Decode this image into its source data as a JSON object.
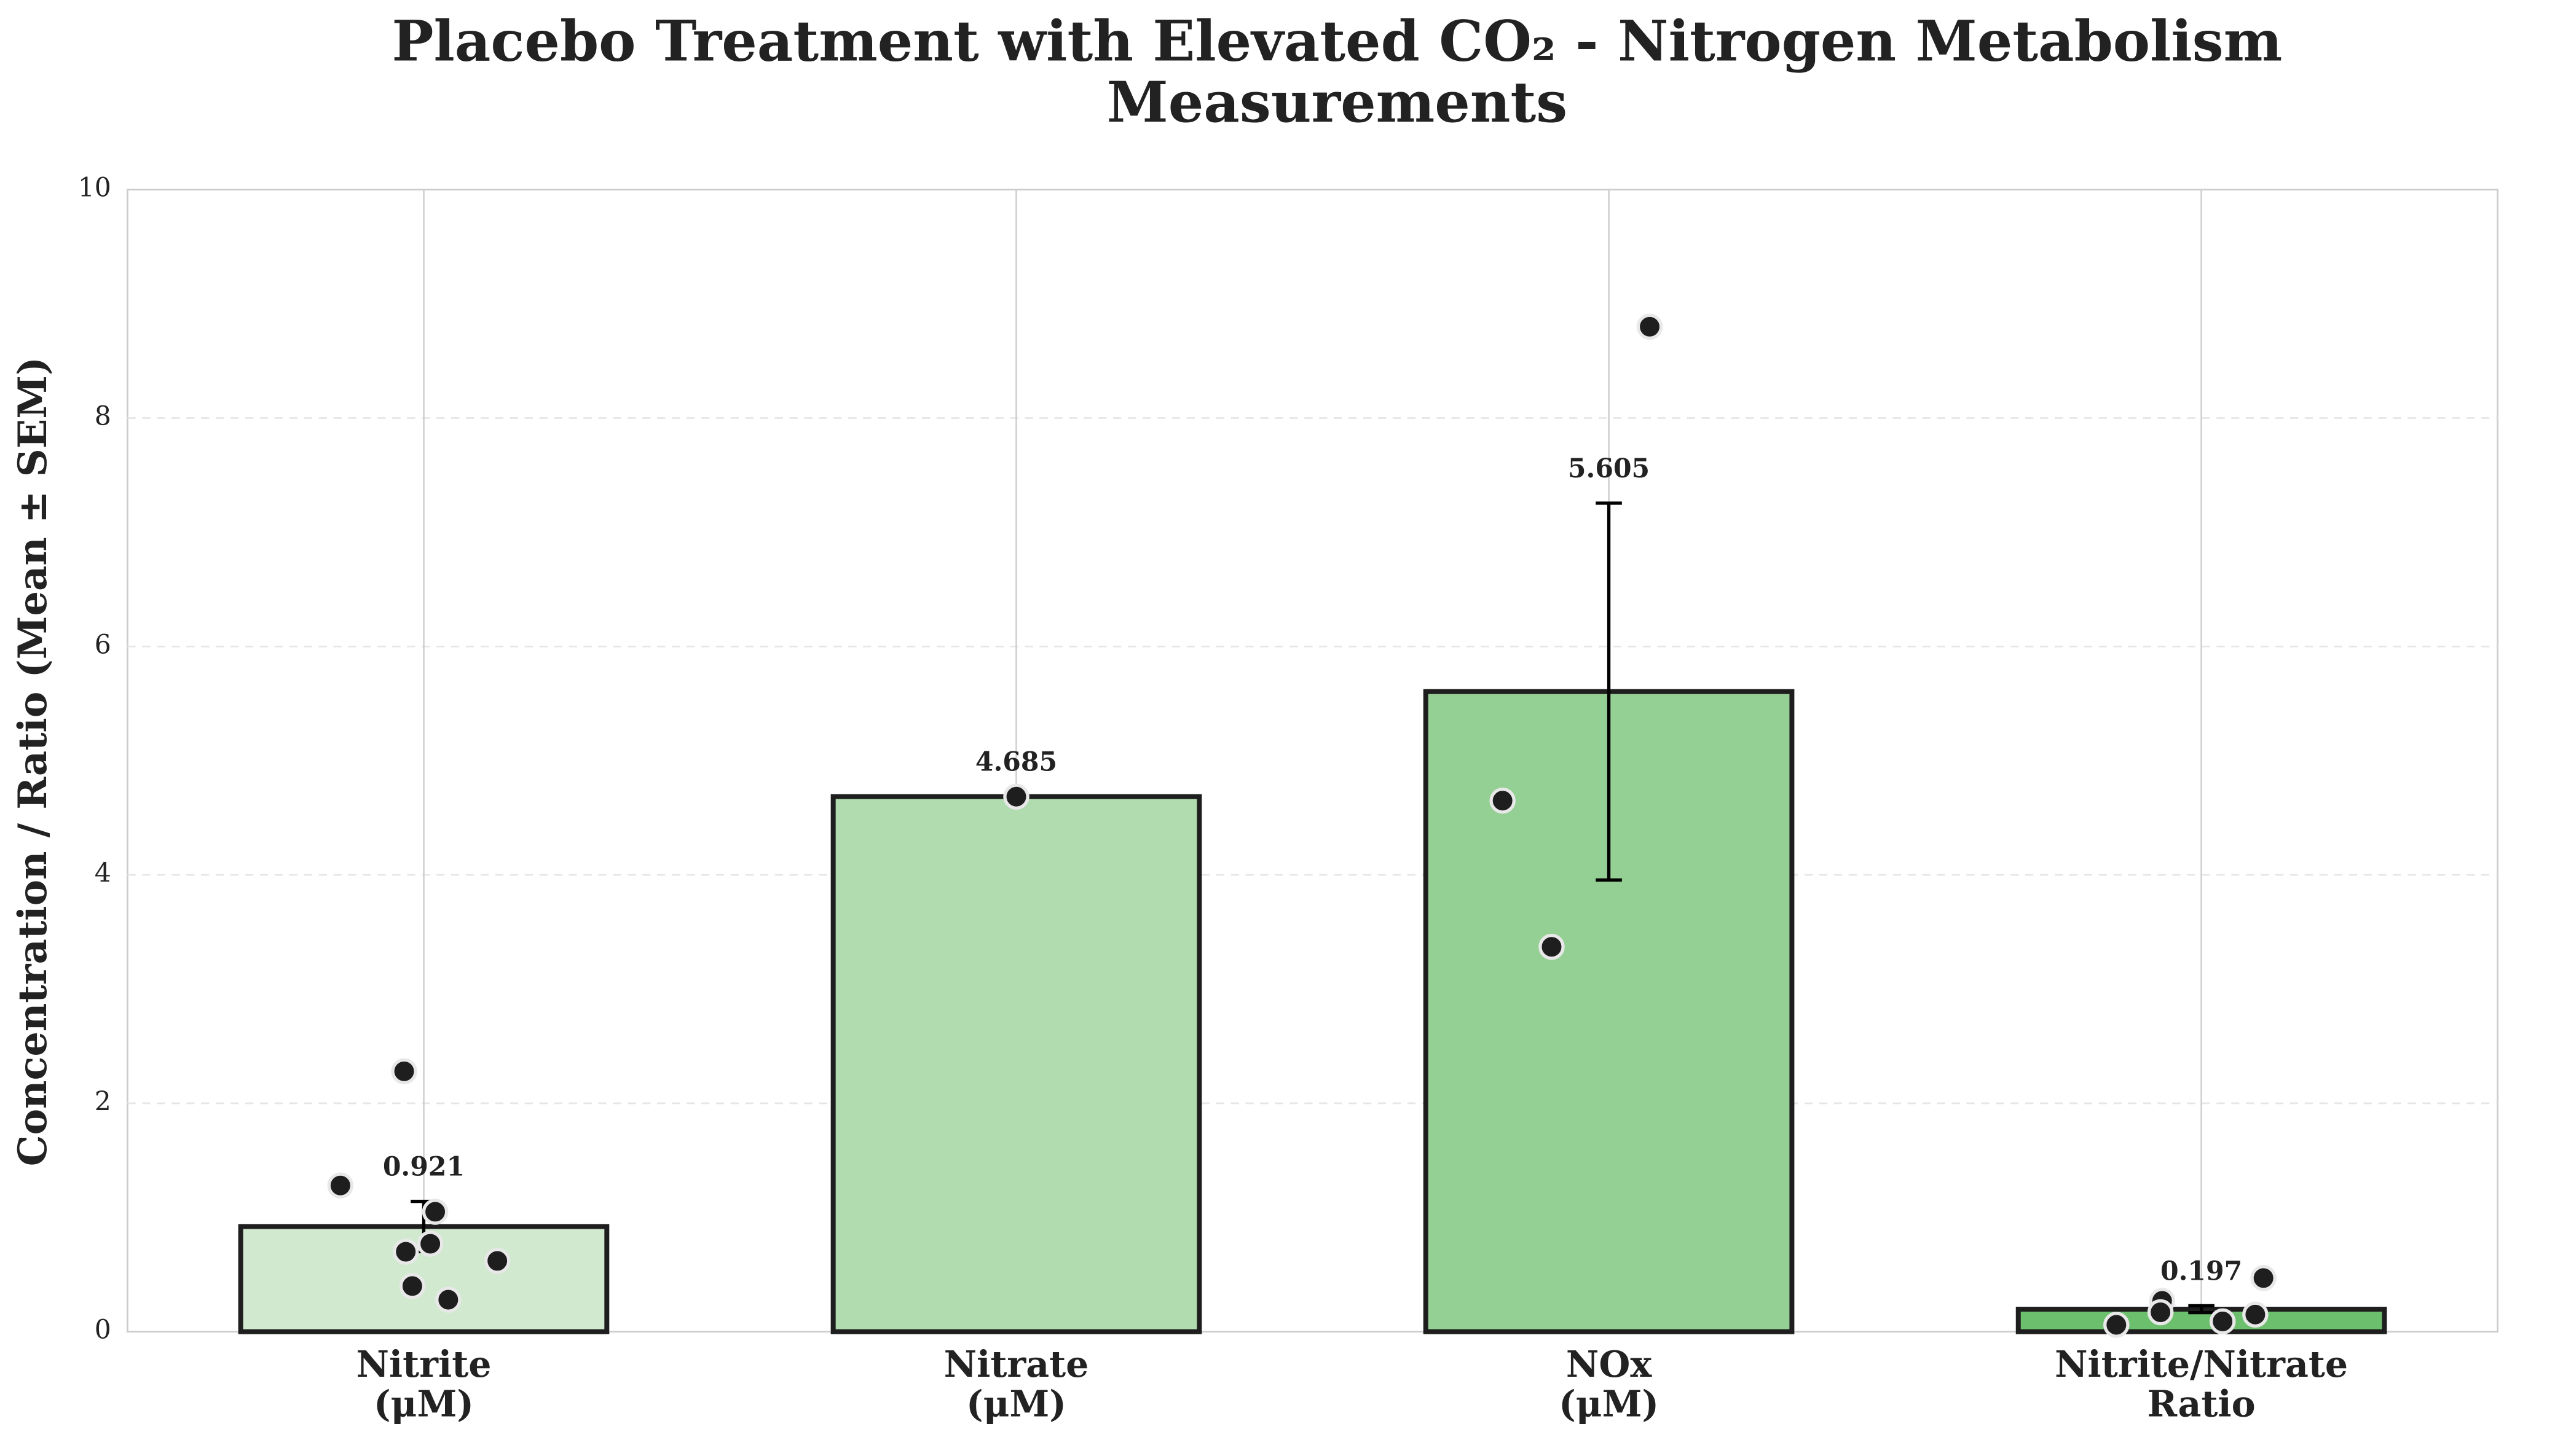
{
  "chart_data": {
    "type": "bar",
    "title": "Placebo Treatment with Elevated CO₂ - Nitrogen Metabolism\nMeasurements",
    "y_label": "Concentration / Ratio (Mean ± SEM)",
    "categories": [
      "Nitrite\n(μM)",
      "Nitrate\n(μM)",
      "NOx\n(μM)",
      "Nitrite/Nitrate\nRatio"
    ],
    "values": [
      0.921,
      4.685,
      5.605,
      0.197
    ],
    "errors": [
      0.22,
      null,
      1.65,
      0.03
    ],
    "colors": [
      "#d0e9cf",
      "#b0dcb0",
      "#94cf93",
      "#6cbf6c"
    ],
    "points": [
      [
        2.28,
        1.28,
        1.05,
        0.7,
        0.77,
        0.62,
        0.4,
        0.28
      ],
      [
        4.685
      ],
      [
        8.8,
        4.65,
        3.37
      ],
      [
        0.47,
        0.27,
        0.17,
        0.15,
        0.09,
        0.06
      ]
    ],
    "ylim": [
      0,
      10
    ],
    "yticks": [
      0,
      2,
      4,
      6,
      8,
      10
    ],
    "grid": true
  }
}
